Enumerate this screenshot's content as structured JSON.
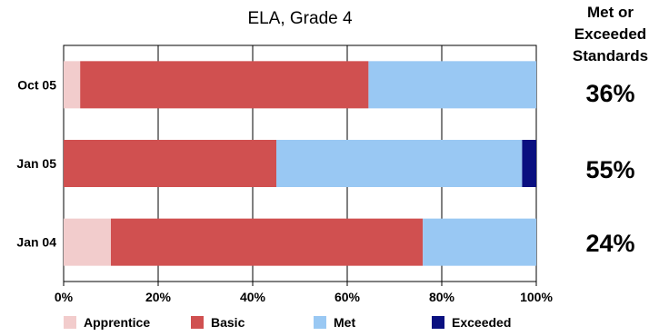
{
  "chart_data": {
    "type": "bar",
    "orientation": "horizontal",
    "stacked": true,
    "title": "ELA, Grade 4",
    "categories": [
      "Oct 05",
      "Jan 05",
      "Jan 04"
    ],
    "series": [
      {
        "name": "Apprentice",
        "color": "#f2cccc",
        "values": [
          3.5,
          0,
          10
        ]
      },
      {
        "name": "Basic",
        "color": "#d05050",
        "values": [
          61,
          45,
          66
        ]
      },
      {
        "name": "Met",
        "color": "#99c8f3",
        "values": [
          35.5,
          52,
          24
        ]
      },
      {
        "name": "Exceeded",
        "color": "#0a1080",
        "values": [
          0,
          3,
          0
        ]
      }
    ],
    "xlim": [
      0,
      100
    ],
    "x_ticks": [
      "0%",
      "20%",
      "40%",
      "60%",
      "80%",
      "100%"
    ],
    "grid": "vertical",
    "legend_position": "bottom"
  },
  "side_panel": {
    "title_lines": [
      "Met or",
      "Exceeded",
      "Standards"
    ],
    "values": [
      "36%",
      "55%",
      "24%"
    ]
  }
}
